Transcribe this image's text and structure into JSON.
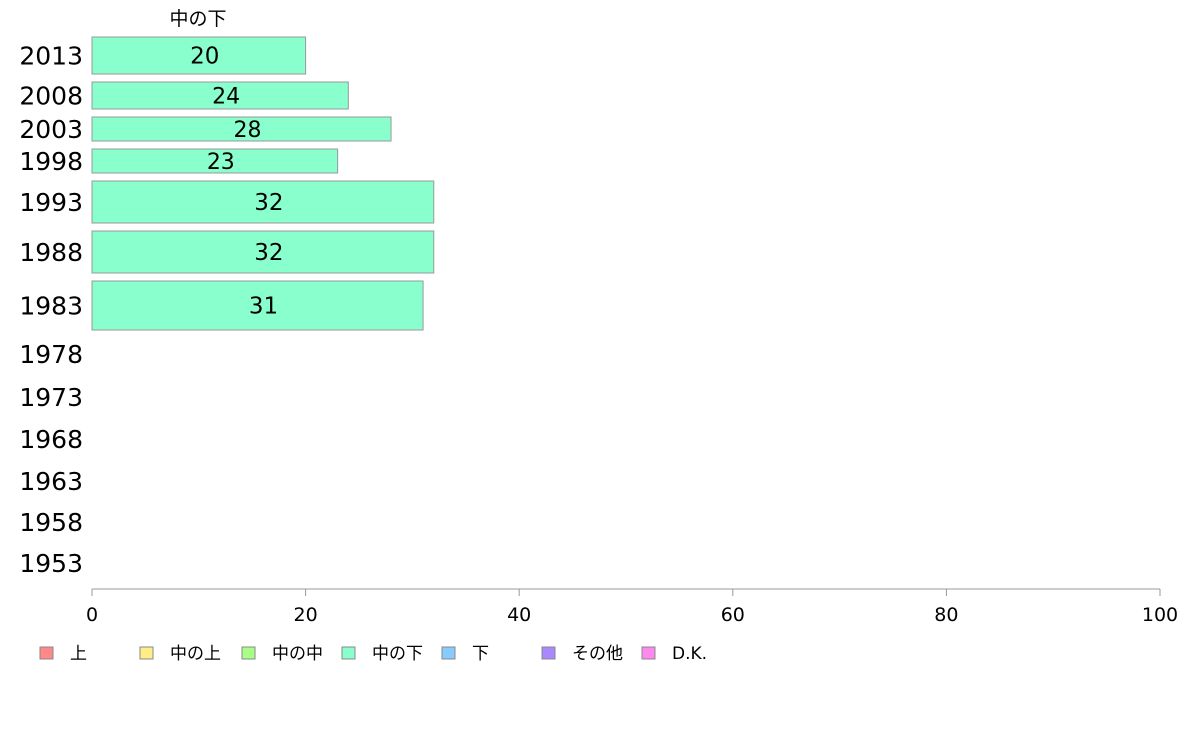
{
  "chart_data": {
    "type": "bar",
    "orientation": "horizontal",
    "title": "中の下",
    "categories": [
      "2013",
      "2008",
      "2003",
      "1998",
      "1993",
      "1988",
      "1983",
      "1978",
      "1973",
      "1968",
      "1963",
      "1958",
      "1953"
    ],
    "series": [
      {
        "name": "中の下",
        "values": [
          20,
          24,
          28,
          23,
          32,
          32,
          31,
          null,
          null,
          null,
          null,
          null,
          null
        ],
        "labels": [
          "20",
          "24",
          "28",
          "23",
          "32",
          "32",
          "31",
          null,
          null,
          null,
          null,
          null,
          null
        ]
      }
    ],
    "xlim": [
      0,
      100
    ],
    "xticks": [
      "0",
      "20",
      "40",
      "60",
      "80",
      "100"
    ],
    "grid": false,
    "legend_position": "bottom",
    "legend": [
      {
        "label": "上",
        "color": "#ff8888"
      },
      {
        "label": "中の上",
        "color": "#ffee88"
      },
      {
        "label": "中の中",
        "color": "#a8ff88"
      },
      {
        "label": "中の下",
        "color": "#88ffcc"
      },
      {
        "label": "下",
        "color": "#88ccff"
      },
      {
        "label": "その他",
        "color": "#aa88ff"
      },
      {
        "label": "D.K.",
        "color": "#ff88ee"
      }
    ]
  }
}
